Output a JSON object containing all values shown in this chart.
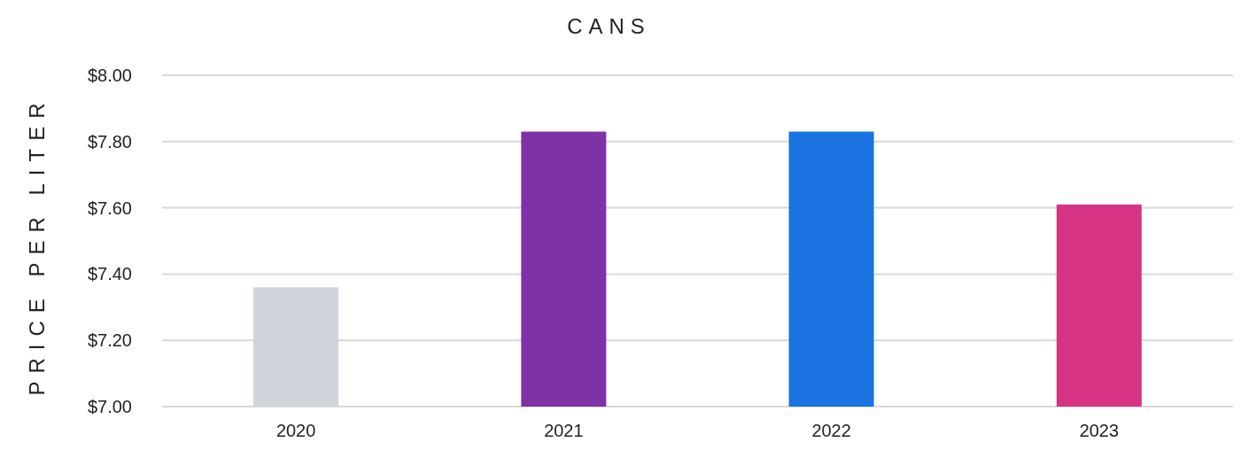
{
  "chart_data": {
    "type": "bar",
    "title": "CANS",
    "ylabel": "PRICE PER LITER",
    "categories": [
      "2020",
      "2021",
      "2022",
      "2023"
    ],
    "values": [
      7.36,
      7.83,
      7.83,
      7.61
    ],
    "colors": [
      "#d0d4db",
      "#7f31a6",
      "#1a73e0",
      "#d63384"
    ],
    "ylim": [
      7,
      8
    ],
    "yticks": [
      {
        "value": 7,
        "label": "$7.00"
      },
      {
        "value": 7.2,
        "label": "$7.20"
      },
      {
        "value": 7.4,
        "label": "$7.40"
      },
      {
        "value": 7.6,
        "label": "$7.60"
      },
      {
        "value": 7.8,
        "label": "$7.80"
      },
      {
        "value": 8,
        "label": "$8.00"
      }
    ],
    "grid": "y"
  }
}
